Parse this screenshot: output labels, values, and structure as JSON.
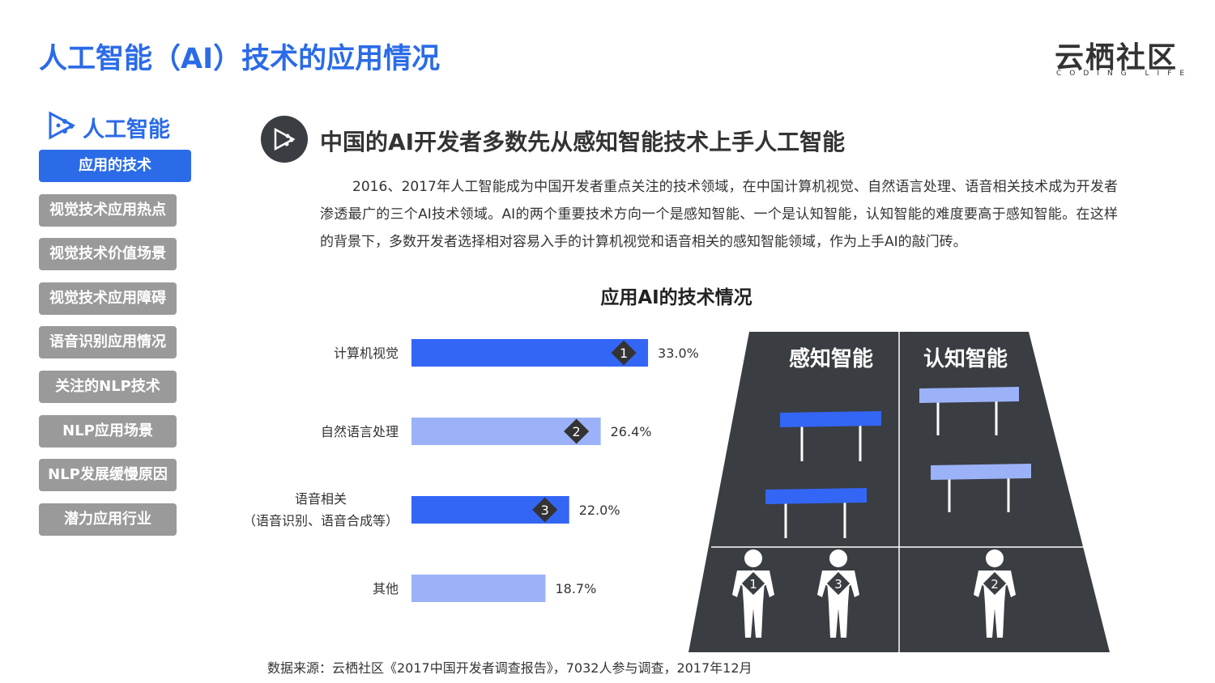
{
  "header": {
    "title": "人工智能（AI）技术的应用情况",
    "logo": "云栖社区",
    "logo_tagline": "CODING LIFE"
  },
  "sidebar": {
    "heading": "人工智能",
    "active": 0,
    "items": [
      "应用的技术",
      "视觉技术应用热点",
      "视觉技术价值场景",
      "视觉技术应用障碍",
      "语音识别应用情况",
      "关注的NLP技术",
      "NLP应用场景",
      "NLP发展缓慢原因",
      "潜力应用行业"
    ]
  },
  "section": {
    "heading": "中国的AI开发者多数先从感知智能技术上手人工智能",
    "paragraph": "2016、2017年人工智能成为中国开发者重点关注的技术领域，在中国计算机视觉、自然语言处理、语音相关技术成为开发者渗透最广的三个AI技术领域。AI的两个重要技术方向一个是感知智能、一个是认知智能，认知智能的难度要高于感知智能。在这样的背景下，多数开发者选择相对容易入手的计算机视觉和语音相关的感知智能领域，作为上手AI的敲门砖。"
  },
  "chart_data": {
    "type": "bar",
    "orientation": "horizontal",
    "title": "应用AI的技术情况",
    "categories": [
      "计算机视觉",
      "自然语言处理",
      "语音相关\n（语音识别、语音合成等）",
      "其他"
    ],
    "values": [
      33.0,
      26.4,
      22.0,
      18.7
    ],
    "value_labels": [
      "33.0%",
      "26.4%",
      "22.0%",
      "18.7%"
    ],
    "colors": [
      "#3366f5",
      "#9cb2f8",
      "#3366f5",
      "#9cb2f8"
    ],
    "rank_labels": [
      "1",
      "2",
      "3",
      null
    ]
  },
  "diagram": {
    "columns": [
      "感知智能",
      "认知智能"
    ],
    "people": [
      "1",
      "3",
      "2"
    ]
  },
  "source": "数据来源：云栖社区《2017中国开发者调查报告》，7032人参与调查，2017年12月"
}
